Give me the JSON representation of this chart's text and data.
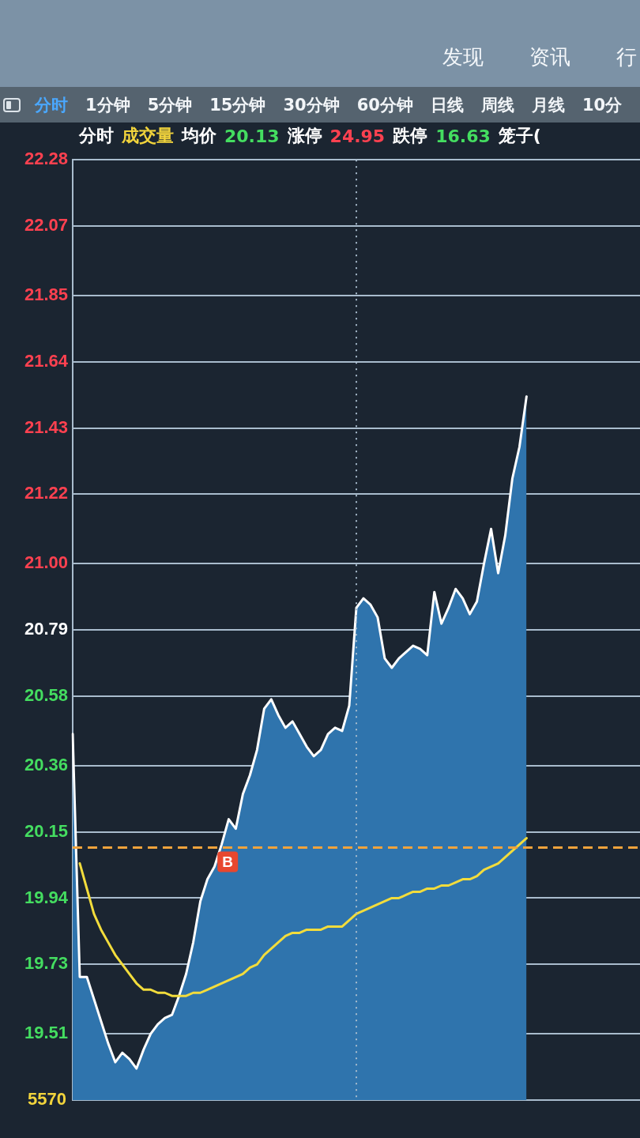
{
  "chart_data": {
    "type": "line",
    "title": "分时 成交量 均价 20.13 涨停 24.95 跌停 16.63 笼子(",
    "subtitle": "分时 1分钟 5分钟 15分钟 30分钟 60分钟 日线 周线 月线 10分",
    "annotations": [
      "发现",
      "资讯",
      "行",
      "5570"
    ],
    "categories": [
      null,
      null,
      null,
      null,
      null,
      null,
      null,
      null,
      null,
      null,
      null,
      null,
      null,
      null,
      null,
      null,
      null,
      null,
      null,
      null,
      null,
      null,
      null,
      null,
      null,
      null,
      null,
      null,
      null,
      null,
      null,
      null,
      null,
      null,
      null,
      null,
      null,
      null,
      null,
      null,
      null,
      null,
      null,
      null,
      null,
      null,
      null,
      null,
      null,
      null,
      null,
      null,
      null,
      null,
      null,
      null,
      null,
      null,
      null,
      null,
      null,
      null,
      null,
      null,
      null,
      null,
      null,
      null,
      null,
      null,
      null,
      null,
      null,
      null,
      null,
      null,
      null,
      null,
      null,
      null,
      null
    ],
    "series": [
      {
        "type": "area",
        "color": "#2f74ad",
        "values": [
          20.46,
          19.69,
          19.69,
          19.62,
          19.55,
          19.48,
          19.42,
          19.45,
          19.43,
          19.4,
          19.46,
          19.51,
          19.54,
          19.56,
          19.57,
          19.63,
          19.7,
          19.8,
          19.93,
          20.0,
          20.04,
          20.11,
          20.19,
          20.16,
          20.27,
          20.33,
          20.41,
          20.54,
          20.57,
          20.52,
          20.48,
          20.5,
          20.46,
          20.42,
          20.39,
          20.41,
          20.46,
          20.48,
          20.47,
          20.55,
          20.86,
          20.89,
          20.87,
          20.83,
          20.7,
          20.67,
          20.7,
          20.72,
          20.74,
          20.73,
          20.71,
          20.91,
          20.81,
          20.86,
          20.92,
          20.89,
          20.84,
          20.88,
          21.0,
          21.11,
          20.97,
          21.09,
          21.27,
          21.37,
          21.53,
          null,
          null,
          null,
          null,
          null,
          null,
          null,
          null,
          null,
          null,
          null,
          null,
          null,
          null,
          null,
          null
        ]
      },
      {
        "type": "line",
        "color": "#f2dc3c",
        "values": [
          null,
          20.05,
          19.97,
          19.89,
          19.84,
          19.8,
          19.76,
          19.73,
          19.7,
          19.67,
          19.65,
          19.65,
          19.64,
          19.64,
          19.63,
          19.63,
          19.63,
          19.64,
          19.64,
          19.65,
          19.66,
          19.67,
          19.68,
          19.69,
          19.7,
          19.72,
          19.73,
          19.76,
          19.78,
          19.8,
          19.82,
          19.83,
          19.83,
          19.84,
          19.84,
          19.84,
          19.85,
          19.85,
          19.85,
          19.87,
          19.89,
          19.9,
          19.91,
          19.92,
          19.93,
          19.94,
          19.94,
          19.95,
          19.96,
          19.96,
          19.97,
          19.97,
          19.98,
          19.98,
          19.99,
          20.0,
          20.0,
          20.01,
          20.03,
          20.04,
          20.05,
          20.07,
          20.09,
          20.11,
          20.13,
          null,
          null,
          null,
          null,
          null,
          null,
          null,
          null,
          null,
          null,
          null,
          null,
          null,
          null,
          null,
          null
        ]
      }
    ],
    "ylim": [
      19.3,
      22.28
    ],
    "yticks": [
      19.51,
      19.73,
      19.94,
      20.15,
      20.36,
      20.58,
      20.79,
      {
        "value": 21,
        "label": "21.00"
      },
      21.22,
      21.43,
      21.64,
      21.85,
      22.07,
      22.28
    ],
    "ref_lines": [
      {
        "axis": "y",
        "value": 20.1,
        "label": "B",
        "color": "#f0a33c",
        "line_style": "dashed"
      }
    ],
    "grid": true,
    "tick_labels": "y"
  }
}
